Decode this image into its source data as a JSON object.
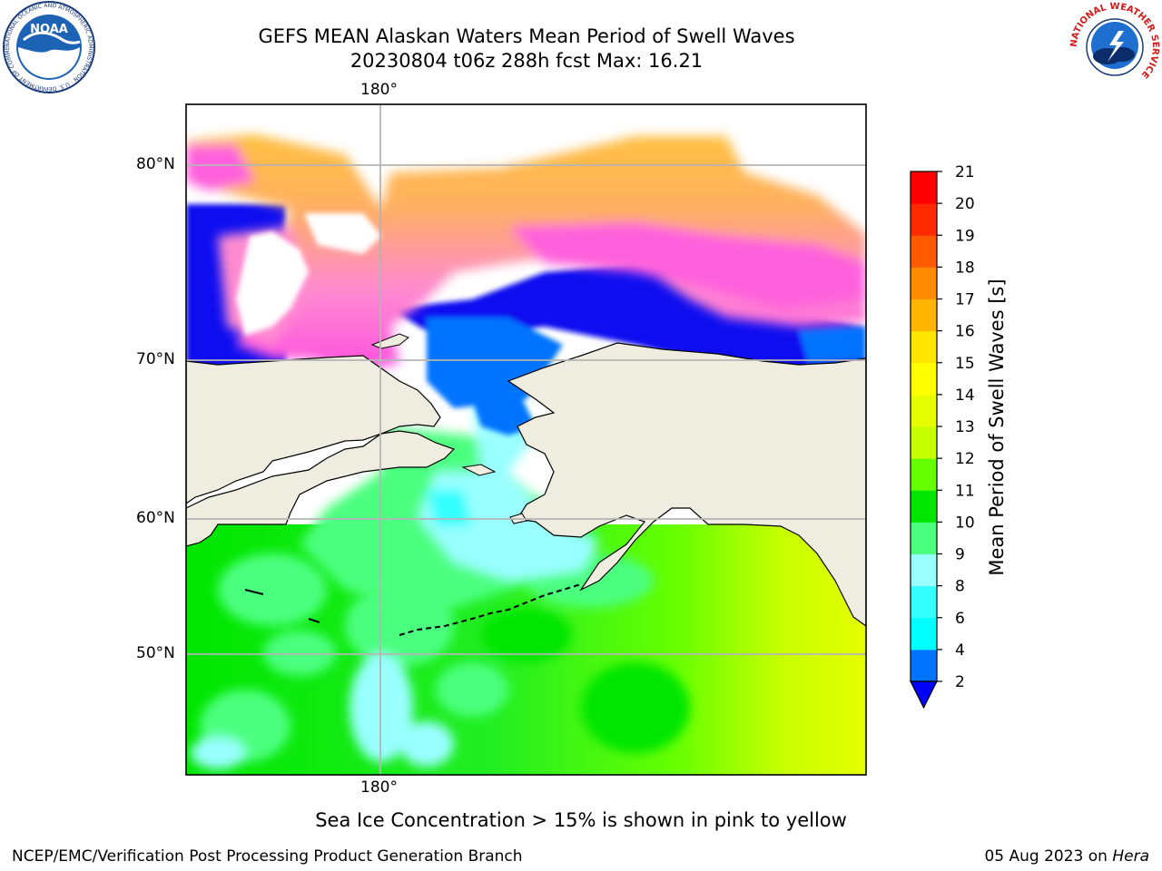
{
  "header": {
    "title_line1": "GEFS MEAN Alaskan Waters Mean Period of Swell Waves",
    "title_line2": "20230804 t06z 288h fcst   Max: 16.21"
  },
  "logos": {
    "noaa_text": "NOAA",
    "noaa_ring": "NATIONAL OCEANIC AND ATMOSPHERIC ADMINISTRATION · U.S. DEPARTMENT OF COMMERCE",
    "nws_ring": "NATIONAL WEATHER SERVICE"
  },
  "map": {
    "lon_labels": {
      "top": "180°",
      "bottom": "180°"
    },
    "lat_labels": [
      "80°N",
      "70°N",
      "60°N",
      "50°N"
    ],
    "colors": {
      "land": "#efeddf",
      "frame": "#000000",
      "grid": "#b4b4b4"
    }
  },
  "colorbar": {
    "label": "Mean Period of Swell Waves [s]",
    "ticks": [
      "2",
      "4",
      "6",
      "8",
      "9",
      "10",
      "11",
      "12",
      "13",
      "14",
      "15",
      "16",
      "17",
      "18",
      "19",
      "20",
      "21"
    ],
    "extend_color": "#0000ff",
    "colors": [
      "#0073ff",
      "#00ffff",
      "#33ffff",
      "#99ffff",
      "#4cff7f",
      "#00e600",
      "#66ff00",
      "#c8ff00",
      "#e6ff00",
      "#ffff00",
      "#ffe600",
      "#ffb400",
      "#ff8c00",
      "#ff5a00",
      "#ff2a00",
      "#ff0000"
    ]
  },
  "note": "Sea Ice Concentration > 15% is shown in pink to yellow",
  "footer": {
    "left": "NCEP/EMC/Verification Post Processing Product Generation Branch",
    "date": "05 Aug 2023 on ",
    "host": "Hera"
  }
}
